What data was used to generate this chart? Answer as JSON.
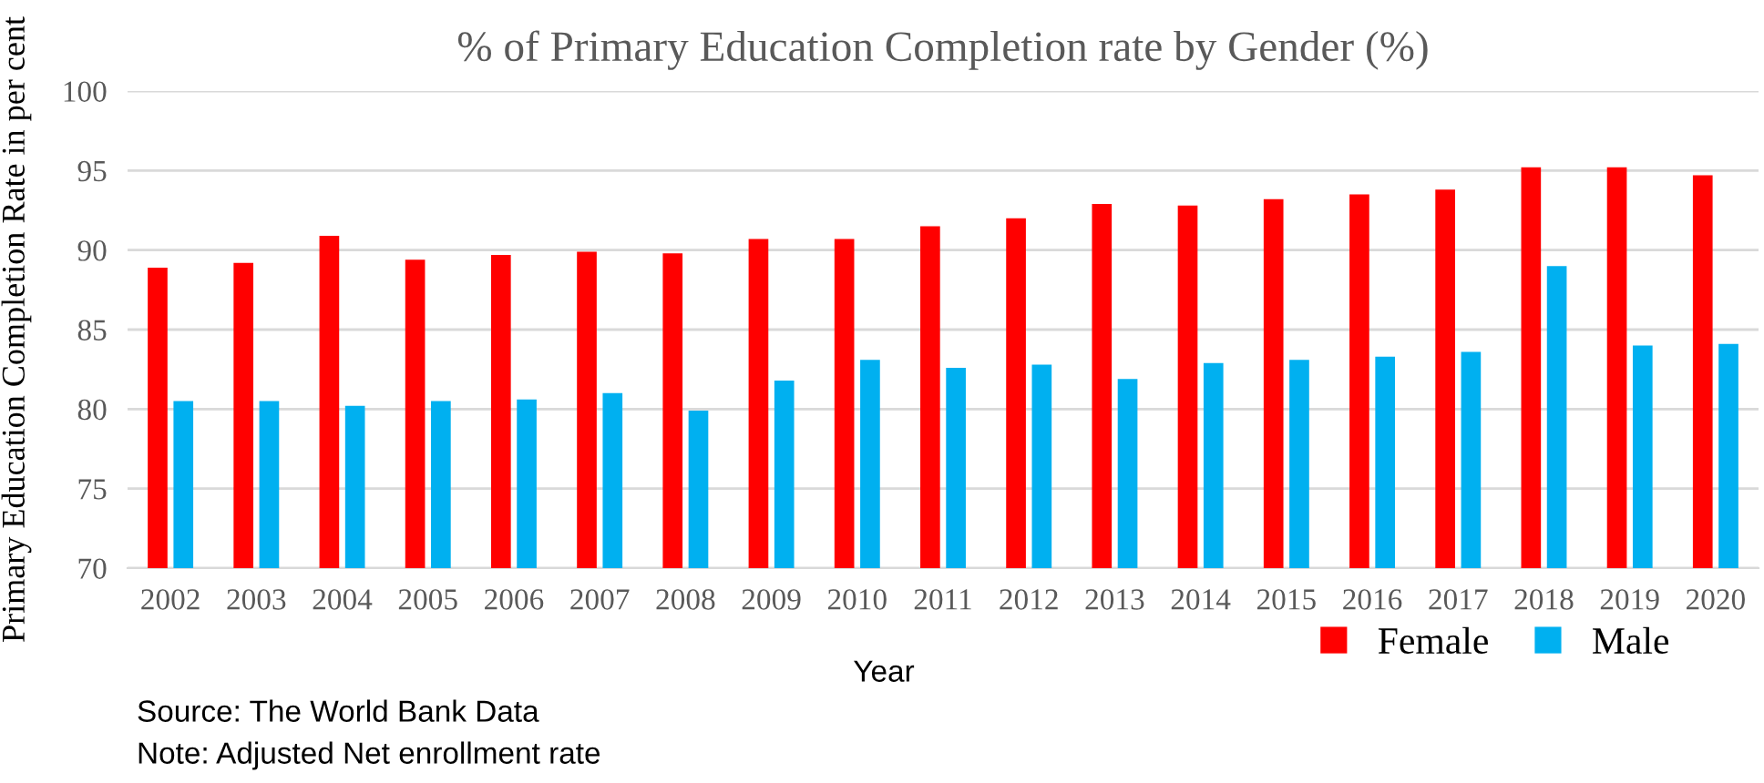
{
  "chart_data": {
    "type": "bar",
    "title": "% of Primary Education Completion rate by Gender (%)",
    "xlabel": "Year",
    "ylabel": "Primary Education Completion Rate in per cent",
    "categories": [
      "2002",
      "2003",
      "2004",
      "2005",
      "2006",
      "2007",
      "2008",
      "2009",
      "2010",
      "2011",
      "2012",
      "2013",
      "2014",
      "2015",
      "2016",
      "2017",
      "2018",
      "2019",
      "2020"
    ],
    "series": [
      {
        "name": "Female",
        "color": "#ff0000",
        "values": [
          88.9,
          89.2,
          90.9,
          89.4,
          89.7,
          89.9,
          89.8,
          90.7,
          90.7,
          91.5,
          92.0,
          92.9,
          92.8,
          93.2,
          93.5,
          93.8,
          95.2,
          95.2,
          94.7
        ]
      },
      {
        "name": "Male",
        "color": "#00b0f0",
        "values": [
          80.5,
          80.5,
          80.2,
          80.5,
          80.6,
          81.0,
          79.9,
          81.8,
          83.1,
          82.6,
          82.8,
          81.9,
          82.9,
          83.1,
          83.3,
          83.6,
          89.0,
          84.0,
          84.1
        ]
      }
    ],
    "ylim": [
      70,
      100
    ],
    "yticks": [
      70,
      75,
      80,
      85,
      90,
      95,
      100
    ],
    "grid": "y",
    "legend": "bottom right",
    "annotations": [
      "Source: The World Bank Data",
      "Note: Adjusted Net enrollment rate"
    ]
  }
}
